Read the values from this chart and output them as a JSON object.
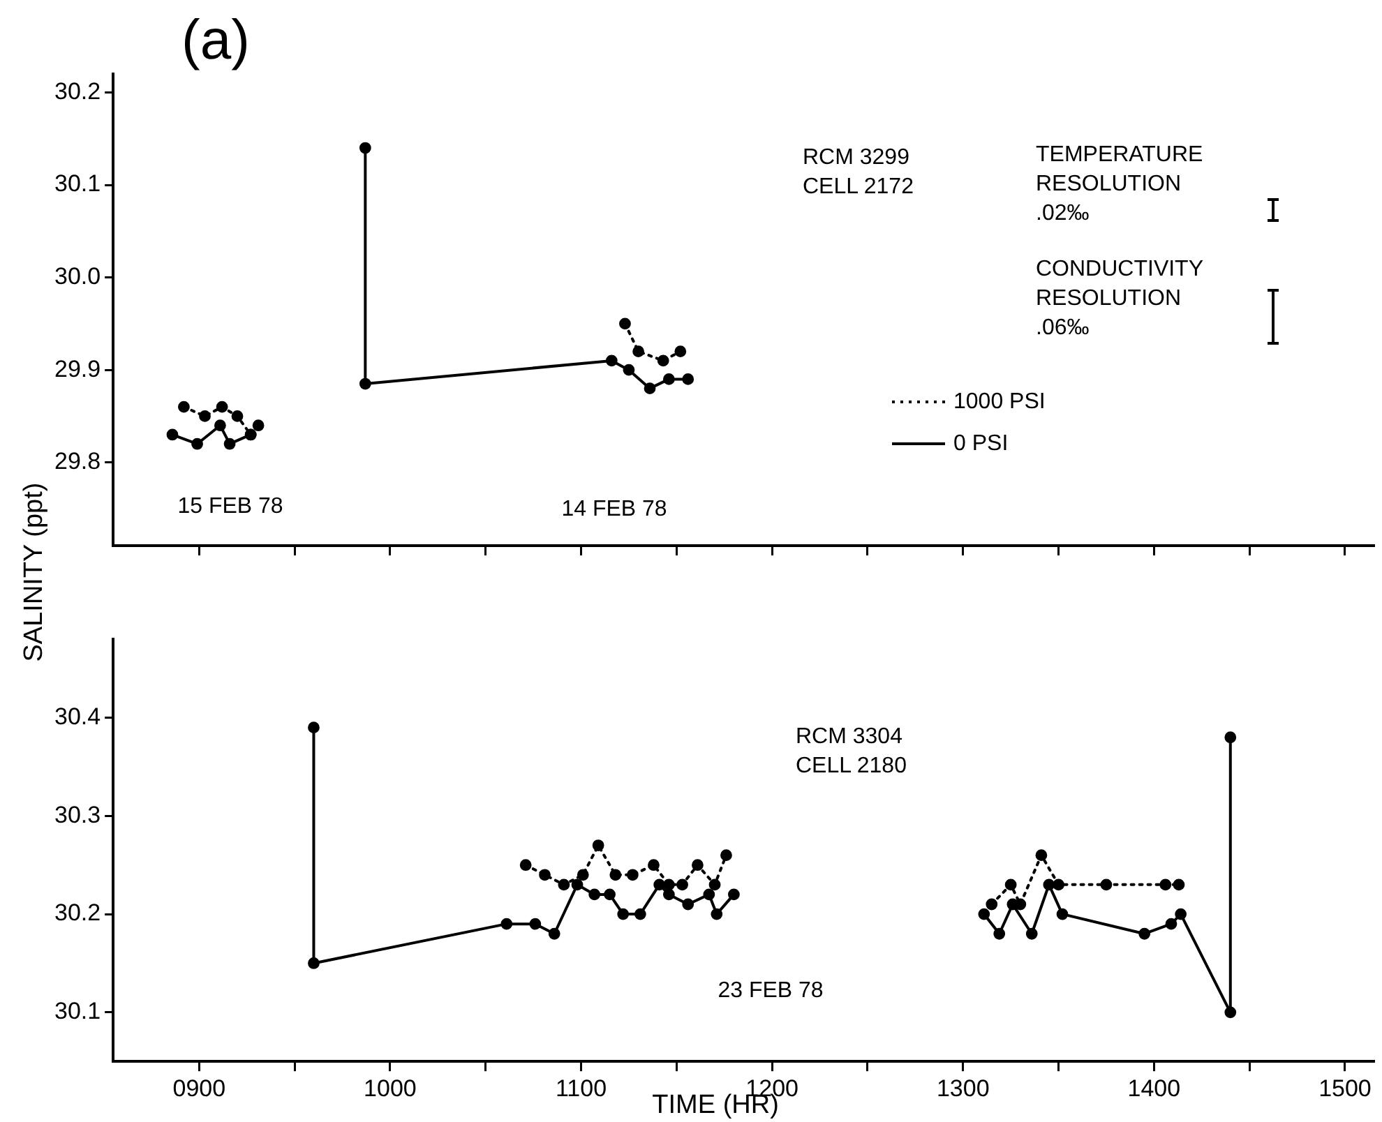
{
  "chart_data": [
    {
      "type": "line",
      "title": "(a)",
      "ylabel": "SALINITY (ppt)",
      "xlim": [
        855,
        1515
      ],
      "ylim": [
        29.71,
        30.22
      ],
      "xticks": [
        900,
        950,
        1000,
        1050,
        1100,
        1150,
        1200,
        1250,
        1300,
        1350,
        1400,
        1450,
        1500
      ],
      "yticks": [
        29.8,
        29.9,
        {
          "value": 30,
          "label": "30.0"
        },
        30.1,
        30.2
      ],
      "tick_labels": "y",
      "legend": "right",
      "marker": "circle",
      "grid": false,
      "annotations": [
        "RCM 3299\nCELL 2172",
        "TEMPERATURE\nRESOLUTION\n.02‰",
        "CONDUCTIVITY\nRESOLUTION\n.06‰",
        "15 FEB 78",
        "14 FEB 78"
      ],
      "series": [
        {
          "name": "1000 PSI",
          "color": "#000000",
          "line_style": "dotted",
          "x": [
            892,
            903,
            912,
            920,
            927,
            931,
            950,
            1123,
            1130,
            1143,
            1152
          ],
          "values": [
            29.86,
            29.85,
            29.86,
            29.85,
            29.83,
            29.84,
            null,
            29.95,
            29.92,
            29.91,
            29.92
          ]
        },
        {
          "name": "0 PSI",
          "color": "#000000",
          "line_style": "solid",
          "x": [
            886,
            899,
            911,
            916,
            927,
            950,
            987,
            987,
            1116,
            1125,
            1136,
            1146,
            1156
          ],
          "values": [
            29.83,
            29.82,
            29.84,
            29.82,
            29.83,
            null,
            30.14,
            29.885,
            29.91,
            29.9,
            29.88,
            29.89,
            29.89
          ]
        }
      ]
    },
    {
      "type": "line",
      "xlabel": "TIME (HR)",
      "xlim": [
        855,
        1515
      ],
      "ylim": [
        30.05,
        30.48
      ],
      "xticks": [
        {
          "value": 900,
          "label": "0900"
        },
        {
          "value": 950,
          "label": null
        },
        {
          "value": 1000,
          "label": "1000"
        },
        {
          "value": 1050,
          "label": null
        },
        {
          "value": 1100,
          "label": "1100"
        },
        {
          "value": 1150,
          "label": null
        },
        {
          "value": 1200,
          "label": "1200"
        },
        {
          "value": 1250,
          "label": null
        },
        {
          "value": 1300,
          "label": "1300"
        },
        {
          "value": 1350,
          "label": null
        },
        {
          "value": 1400,
          "label": "1400"
        },
        {
          "value": 1450,
          "label": null
        },
        {
          "value": 1500,
          "label": "1500"
        }
      ],
      "yticks": [
        30.1,
        30.2,
        30.3,
        30.4
      ],
      "marker": "circle",
      "grid": false,
      "annotations": [
        "RCM 3304\nCELL 2180",
        "23 FEB 78"
      ],
      "series": [
        {
          "color": "#000000",
          "line_style": "dotted",
          "x": [
            1071,
            1081,
            1091,
            1101,
            1109,
            1118,
            1127,
            1138,
            1146,
            1153,
            1161,
            1170,
            1176,
            1250,
            1315,
            1325,
            1330,
            1341,
            1350,
            1375,
            1406,
            1413
          ],
          "values": [
            30.25,
            30.24,
            30.23,
            30.24,
            30.27,
            30.24,
            30.24,
            30.25,
            30.23,
            30.23,
            30.25,
            30.23,
            30.26,
            null,
            30.21,
            30.23,
            30.21,
            30.26,
            30.23,
            30.23,
            30.23,
            30.23
          ]
        },
        {
          "color": "#000000",
          "line_style": "solid",
          "x": [
            960,
            960,
            1061,
            1076,
            1086,
            1098,
            1107,
            1115,
            1122,
            1131,
            1141,
            1146,
            1156,
            1167,
            1171,
            1180,
            1250,
            1311,
            1319,
            1326,
            1336,
            1345,
            1352,
            1395,
            1409,
            1414,
            1440,
            1440
          ],
          "values": [
            30.39,
            30.15,
            30.19,
            30.19,
            30.18,
            30.23,
            30.22,
            30.22,
            30.2,
            30.2,
            30.23,
            30.22,
            30.21,
            30.22,
            30.2,
            30.22,
            null,
            30.2,
            30.18,
            30.21,
            30.18,
            30.23,
            30.2,
            30.18,
            30.19,
            30.2,
            30.1,
            30.38
          ]
        }
      ]
    }
  ]
}
